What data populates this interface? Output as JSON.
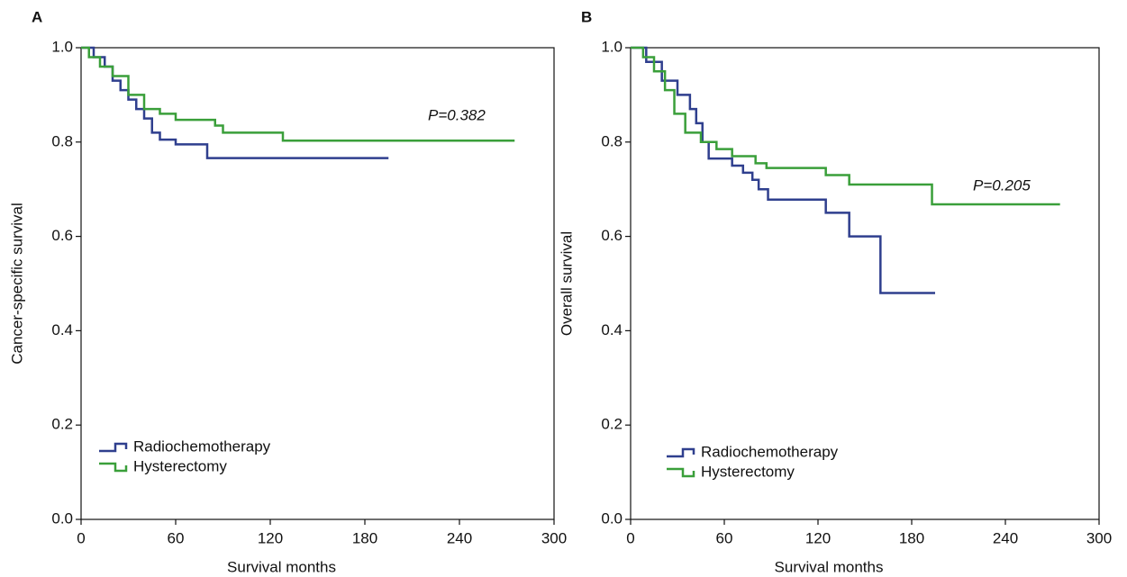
{
  "chart_data": [
    {
      "type": "step",
      "panel": "A",
      "xlabel": "Survival months",
      "ylabel": "Cancer-specific survival",
      "annotation": "P=0.382",
      "xlim": [
        0,
        300
      ],
      "xticks": [
        0,
        60,
        120,
        180,
        240,
        300
      ],
      "ylim": [
        0,
        1
      ],
      "yticks": [
        {
          "value": 0,
          "label": "0.0"
        },
        0.2,
        0.4,
        0.6,
        0.8,
        {
          "value": 1,
          "label": "1.0"
        }
      ],
      "legend": "lower left",
      "series": [
        {
          "name": "Radiochemotherapy",
          "color": "#2f3f8e",
          "x": [
            0,
            8,
            15,
            20,
            25,
            30,
            35,
            40,
            45,
            50,
            60,
            80,
            195
          ],
          "values": [
            1.0,
            0.98,
            0.96,
            0.93,
            0.91,
            0.89,
            0.87,
            0.85,
            0.82,
            0.805,
            0.795,
            0.766,
            0.766
          ]
        },
        {
          "name": "Hysterectomy",
          "color": "#3a9f3a",
          "x": [
            0,
            5,
            12,
            20,
            30,
            40,
            50,
            60,
            85,
            90,
            128,
            275
          ],
          "values": [
            1.0,
            0.98,
            0.96,
            0.94,
            0.9,
            0.87,
            0.86,
            0.847,
            0.835,
            0.82,
            0.803,
            0.803
          ]
        }
      ]
    },
    {
      "type": "step",
      "panel": "B",
      "xlabel": "Survival months",
      "ylabel": "Overall survival",
      "annotation": "P=0.205",
      "xlim": [
        0,
        300
      ],
      "xticks": [
        0,
        60,
        120,
        180,
        240,
        300
      ],
      "ylim": [
        0,
        1
      ],
      "yticks": [
        {
          "value": 0,
          "label": "0.0"
        },
        0.2,
        0.4,
        0.6,
        0.8,
        {
          "value": 1,
          "label": "1.0"
        }
      ],
      "legend": "lower left",
      "series": [
        {
          "name": "Radiochemotherapy",
          "color": "#2f3f8e",
          "x": [
            0,
            10,
            20,
            30,
            38,
            42,
            46,
            50,
            65,
            72,
            78,
            82,
            88,
            125,
            140,
            160,
            195
          ],
          "values": [
            1.0,
            0.97,
            0.93,
            0.9,
            0.87,
            0.84,
            0.8,
            0.765,
            0.75,
            0.735,
            0.72,
            0.7,
            0.678,
            0.65,
            0.6,
            0.48,
            0.48
          ]
        },
        {
          "name": "Hysterectomy",
          "color": "#3a9f3a",
          "x": [
            0,
            8,
            15,
            22,
            28,
            35,
            45,
            55,
            65,
            80,
            87,
            125,
            140,
            193,
            275
          ],
          "values": [
            1.0,
            0.98,
            0.95,
            0.91,
            0.86,
            0.82,
            0.8,
            0.785,
            0.77,
            0.755,
            0.745,
            0.73,
            0.71,
            0.668,
            0.668
          ]
        }
      ]
    }
  ]
}
